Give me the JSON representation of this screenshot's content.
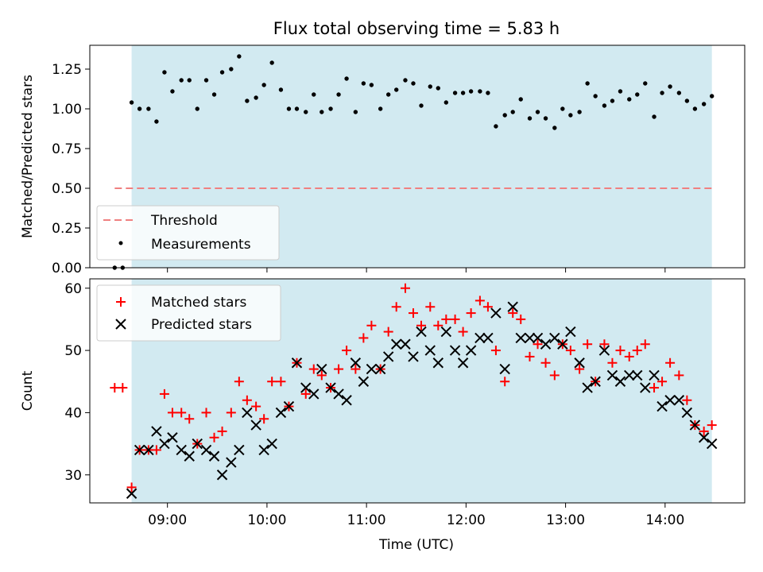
{
  "chart_data": [
    {
      "type": "scatter",
      "title": "Flux total observing time = 5.83 h",
      "ylabel": "Matched/Predicted stars",
      "xlim": [
        8.22,
        14.8
      ],
      "ylim": [
        0,
        1.4
      ],
      "yticks": [
        0.0,
        0.25,
        0.5,
        0.75,
        1.0,
        1.25
      ],
      "ytick_labels": [
        "0.00",
        "0.25",
        "0.50",
        "0.75",
        "1.00",
        "1.25"
      ],
      "shaded_span": [
        8.64,
        14.47
      ],
      "colors": {
        "span": "#add8e6",
        "threshold": "#f08080",
        "measurements": "#000000"
      },
      "threshold": {
        "name": "Threshold",
        "value": 0.5,
        "x_range": [
          8.47,
          14.47
        ]
      },
      "legend_position": "lower-left",
      "series": [
        {
          "name": "Measurements",
          "x": [
            8.47,
            8.55,
            8.64,
            8.72,
            8.81,
            8.89,
            8.97,
            9.05,
            9.14,
            9.22,
            9.3,
            9.39,
            9.47,
            9.55,
            9.64,
            9.72,
            9.8,
            9.89,
            9.97,
            10.05,
            10.14,
            10.22,
            10.3,
            10.39,
            10.47,
            10.55,
            10.64,
            10.72,
            10.8,
            10.89,
            10.97,
            11.05,
            11.14,
            11.22,
            11.3,
            11.39,
            11.47,
            11.55,
            11.64,
            11.72,
            11.8,
            11.89,
            11.97,
            12.05,
            12.14,
            12.22,
            12.3,
            12.39,
            12.47,
            12.55,
            12.64,
            12.72,
            12.8,
            12.89,
            12.97,
            13.05,
            13.14,
            13.22,
            13.3,
            13.39,
            13.47,
            13.55,
            13.64,
            13.72,
            13.8,
            13.89,
            13.97,
            14.05,
            14.14,
            14.22,
            14.3,
            14.39,
            14.47
          ],
          "y": [
            0.0,
            0.0,
            1.04,
            1.0,
            1.0,
            0.92,
            1.23,
            1.11,
            1.18,
            1.18,
            1.0,
            1.18,
            1.09,
            1.23,
            1.25,
            1.33,
            1.05,
            1.07,
            1.15,
            1.29,
            1.12,
            1.0,
            1.0,
            0.98,
            1.09,
            0.98,
            1.0,
            1.09,
            1.19,
            0.98,
            1.16,
            1.15,
            1.0,
            1.09,
            1.12,
            1.18,
            1.16,
            1.02,
            1.14,
            1.13,
            1.04,
            1.1,
            1.1,
            1.11,
            1.11,
            1.1,
            0.89,
            0.96,
            0.98,
            1.06,
            0.94,
            0.98,
            0.94,
            0.88,
            1.0,
            0.96,
            0.98,
            1.16,
            1.08,
            1.02,
            1.05,
            1.11,
            1.06,
            1.09,
            1.16,
            0.95,
            1.1,
            1.14,
            1.1,
            1.05,
            1.0,
            1.03,
            1.08
          ]
        }
      ]
    },
    {
      "type": "scatter",
      "xlabel": "Time (UTC)",
      "ylabel": "Count",
      "xlim": [
        8.22,
        14.8
      ],
      "ylim": [
        25.5,
        61.5
      ],
      "xticks": [
        9,
        10,
        11,
        12,
        13,
        14
      ],
      "xtick_labels": [
        "09:00",
        "10:00",
        "11:00",
        "12:00",
        "13:00",
        "14:00"
      ],
      "yticks": [
        30,
        40,
        50,
        60
      ],
      "ytick_labels": [
        "30",
        "40",
        "50",
        "60"
      ],
      "shaded_span": [
        8.64,
        14.47
      ],
      "colors": {
        "span": "#add8e6",
        "matched": "#ff0000",
        "predicted": "#000000"
      },
      "legend_position": "upper-left",
      "x": [
        8.47,
        8.55,
        8.64,
        8.72,
        8.81,
        8.89,
        8.97,
        9.05,
        9.14,
        9.22,
        9.3,
        9.39,
        9.47,
        9.55,
        9.64,
        9.72,
        9.8,
        9.89,
        9.97,
        10.05,
        10.14,
        10.22,
        10.3,
        10.39,
        10.47,
        10.55,
        10.64,
        10.72,
        10.8,
        10.89,
        10.97,
        11.05,
        11.14,
        11.22,
        11.3,
        11.39,
        11.47,
        11.55,
        11.64,
        11.72,
        11.8,
        11.89,
        11.97,
        12.05,
        12.14,
        12.22,
        12.3,
        12.39,
        12.47,
        12.55,
        12.64,
        12.72,
        12.8,
        12.89,
        12.97,
        13.05,
        13.14,
        13.22,
        13.3,
        13.39,
        13.47,
        13.55,
        13.64,
        13.72,
        13.8,
        13.89,
        13.97,
        14.05,
        14.14,
        14.22,
        14.3,
        14.39,
        14.47
      ],
      "series": [
        {
          "name": "Matched stars",
          "marker": "plus",
          "values": [
            44,
            44,
            28,
            34,
            34,
            34,
            43,
            40,
            40,
            39,
            35,
            40,
            36,
            37,
            40,
            45,
            42,
            41,
            39,
            45,
            45,
            41,
            48,
            43,
            47,
            46,
            44,
            47,
            50,
            47,
            52,
            54,
            47,
            53,
            57,
            60,
            56,
            54,
            57,
            54,
            55,
            55,
            53,
            56,
            58,
            57,
            50,
            45,
            56,
            55,
            49,
            51,
            48,
            46,
            51,
            50,
            47,
            51,
            45,
            51,
            48,
            50,
            49,
            50,
            51,
            44,
            45,
            48,
            46,
            42,
            38,
            37,
            38
          ]
        },
        {
          "name": "Predicted stars",
          "marker": "x",
          "values": [
            null,
            null,
            27,
            34,
            34,
            37,
            35,
            36,
            34,
            33,
            35,
            34,
            33,
            30,
            32,
            34,
            40,
            38,
            34,
            35,
            40,
            41,
            48,
            44,
            43,
            47,
            44,
            43,
            42,
            48,
            45,
            47,
            47,
            49,
            51,
            51,
            49,
            53,
            50,
            48,
            53,
            50,
            48,
            50,
            52,
            52,
            56,
            47,
            57,
            52,
            52,
            52,
            51,
            52,
            51,
            53,
            48,
            44,
            45,
            50,
            46,
            45,
            46,
            46,
            44,
            46,
            41,
            42,
            42,
            40,
            38,
            36,
            35
          ]
        }
      ]
    }
  ]
}
